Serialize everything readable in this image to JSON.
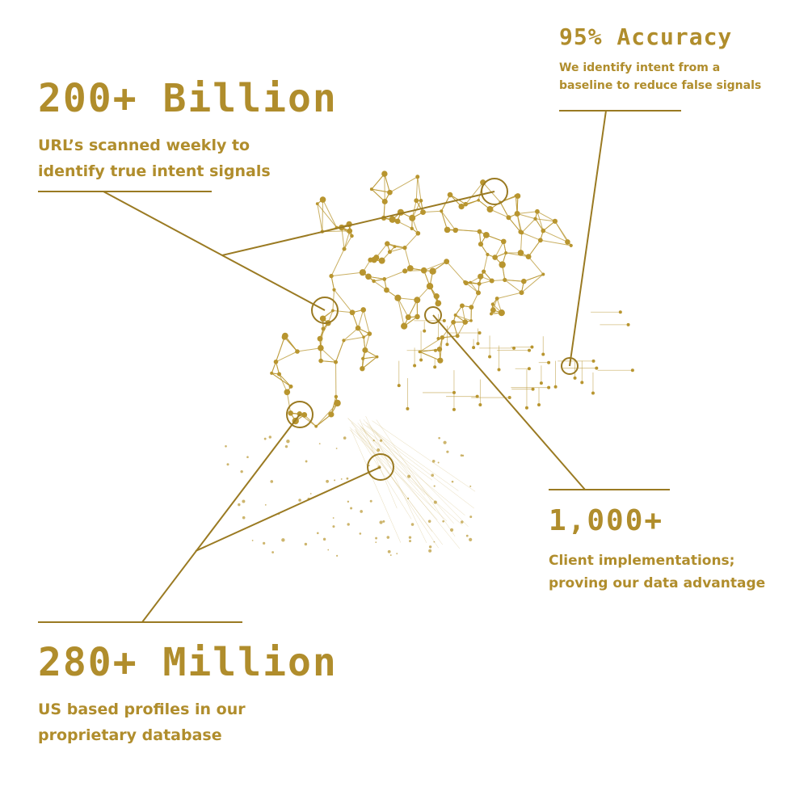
{
  "theme": {
    "accent": "#b08d2c",
    "background": "#ffffff"
  },
  "stats": {
    "urls": {
      "headline": "200+ Billion",
      "line1": "URL’s scanned weekly to",
      "line2": "identify true intent signals"
    },
    "accuracy": {
      "headline": "95% Accuracy",
      "line1": "We identify intent from a",
      "line2": "baseline to reduce false signals"
    },
    "clients": {
      "headline": "1,000+",
      "line1": "Client implementations;",
      "line2": "proving our data advantage"
    },
    "profiles": {
      "headline": "280+ Million",
      "line1": "US based profiles in our",
      "line2": "proprietary database"
    }
  },
  "graphic": {
    "icon": "network-mesh-illustration"
  }
}
